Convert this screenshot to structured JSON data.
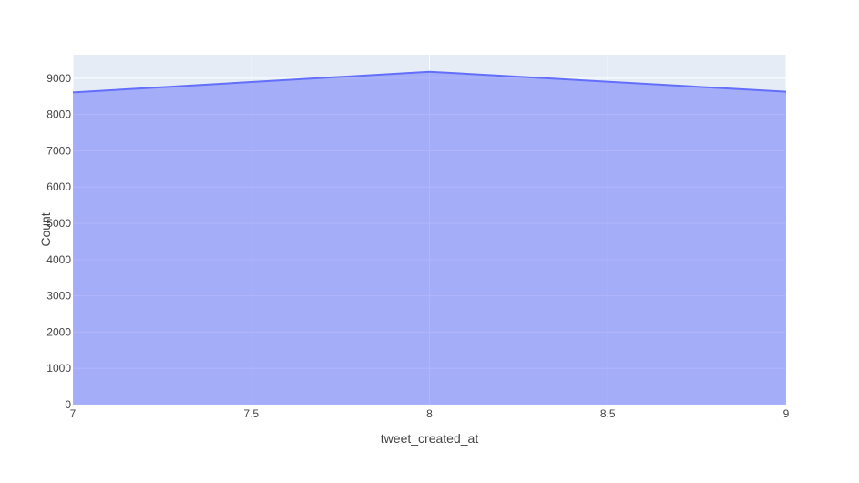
{
  "chart_data": {
    "type": "area",
    "title": "",
    "xlabel": "tweet_created_at",
    "ylabel": "Count",
    "x": [
      7,
      8,
      9
    ],
    "series": [
      {
        "values": [
          8610,
          9180,
          8630
        ]
      }
    ],
    "xlim": [
      7,
      9
    ],
    "ylim": [
      0,
      9650
    ],
    "xticks": [
      7,
      7.5,
      8,
      8.5,
      9
    ],
    "xtick_labels": [
      "7",
      "7.5",
      "8",
      "8.5",
      "9"
    ],
    "yticks": [
      0,
      1000,
      2000,
      3000,
      4000,
      5000,
      6000,
      7000,
      8000,
      9000
    ],
    "ytick_labels": [
      "0",
      "1000",
      "2000",
      "3000",
      "4000",
      "5000",
      "6000",
      "7000",
      "8000",
      "9000"
    ],
    "grid": true,
    "legend": "none",
    "colors": {
      "plot_background": "#e5ecf6",
      "grid": "#ffffff",
      "line": "#636efa",
      "fill": "rgba(99,110,250,0.5)",
      "text": "#444444"
    }
  }
}
